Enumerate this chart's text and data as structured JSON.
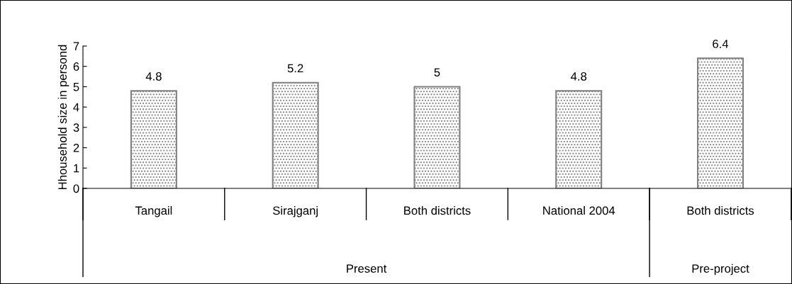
{
  "chart_data": {
    "type": "bar",
    "ylabel": "Hhousehold size in persond",
    "categories": [
      "Tangail",
      "Sirajganj",
      "Both districts",
      "National 2004",
      "Both districts"
    ],
    "values": [
      4.8,
      5.2,
      5,
      4.8,
      6.4
    ],
    "color": "#808080",
    "ylim": [
      0,
      7
    ],
    "yticks": [
      0,
      1,
      2,
      3,
      4,
      5,
      6,
      7
    ],
    "grid": false,
    "data_labels": true,
    "annotations": [
      "Present",
      "Pre-project"
    ]
  }
}
